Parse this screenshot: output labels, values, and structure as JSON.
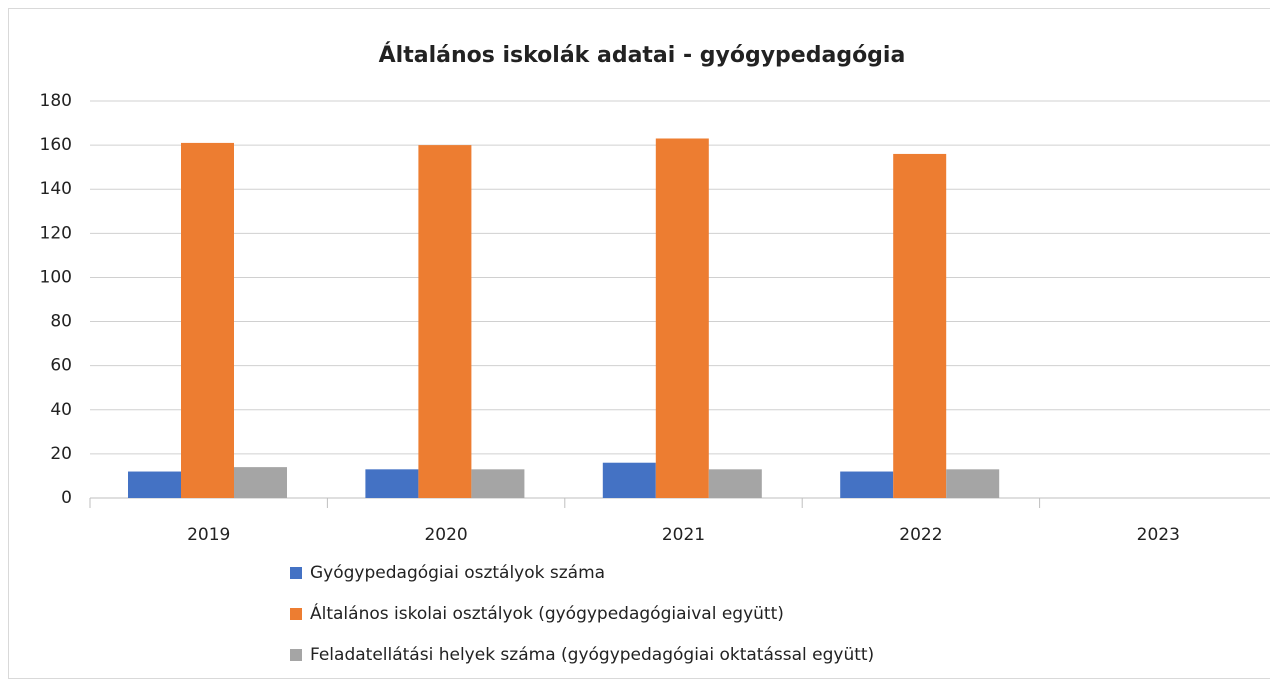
{
  "chart_data": {
    "type": "bar",
    "title": "Általános iskolák adatai - gyógypedagógia",
    "categories": [
      "2019",
      "2020",
      "2021",
      "2022",
      "2023"
    ],
    "series": [
      {
        "name": "Gyógypedagógiai osztályok száma",
        "color": "#4472c4",
        "values": [
          12,
          13,
          16,
          12,
          null
        ]
      },
      {
        "name": "Általános iskolai osztályok (gyógypedagógiaival együtt)",
        "color": "#ed7d31",
        "values": [
          161,
          160,
          163,
          156,
          null
        ]
      },
      {
        "name": "Feladatellátási helyek száma (gyógypedagógiai oktatással együtt)",
        "color": "#a5a5a5",
        "values": [
          14,
          13,
          13,
          13,
          null
        ]
      }
    ],
    "ylim": [
      0,
      180
    ],
    "yticks": [
      0,
      20,
      40,
      60,
      80,
      100,
      120,
      140,
      160,
      180
    ],
    "grid": true,
    "legend": "bottom"
  }
}
